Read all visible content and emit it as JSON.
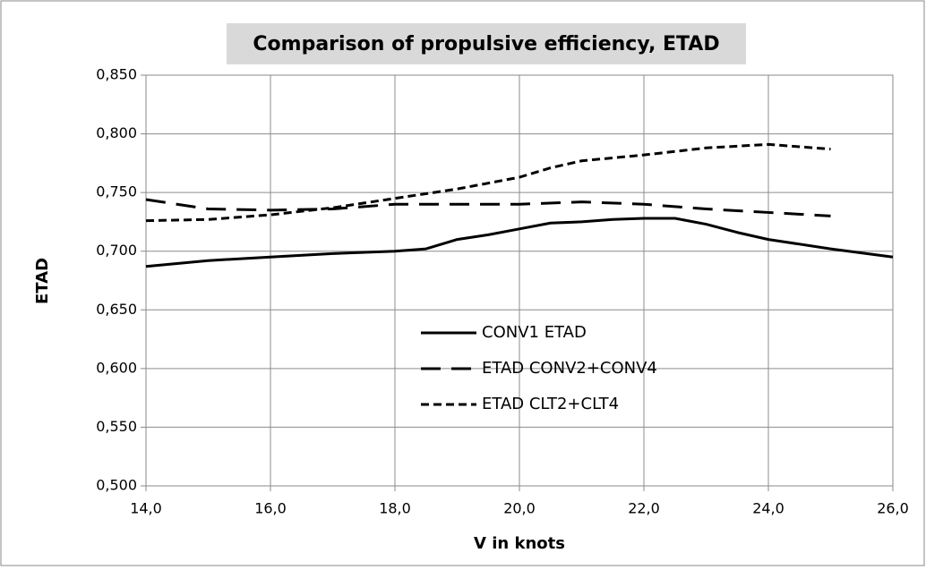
{
  "chart_data": {
    "type": "line",
    "title": "Comparison of propulsive efficiency, ETAD",
    "xlabel": "V in knots",
    "ylabel": "ETAD",
    "xlim": [
      14,
      26
    ],
    "ylim": [
      0.5,
      0.85
    ],
    "xticks": [
      {
        "value": 14,
        "label": "14,0"
      },
      {
        "value": 16,
        "label": "16,0"
      },
      {
        "value": 18,
        "label": "18,0"
      },
      {
        "value": 20,
        "label": "20,0"
      },
      {
        "value": 22,
        "label": "22,0"
      },
      {
        "value": 24,
        "label": "24,0"
      },
      {
        "value": 26,
        "label": "26,0"
      }
    ],
    "yticks": [
      {
        "value": 0.5,
        "label": "0,500"
      },
      {
        "value": 0.55,
        "label": "0,550"
      },
      {
        "value": 0.6,
        "label": "0,600"
      },
      {
        "value": 0.65,
        "label": "0,650"
      },
      {
        "value": 0.7,
        "label": "0,700"
      },
      {
        "value": 0.75,
        "label": "0,750"
      },
      {
        "value": 0.8,
        "label": "0,800"
      },
      {
        "value": 0.85,
        "label": "0,850"
      }
    ],
    "grid": true,
    "series": [
      {
        "name": "CONV1 ETAD",
        "color": "#000000",
        "style": "solid",
        "x": [
          14,
          15,
          16,
          17,
          18,
          18.5,
          19,
          19.5,
          20,
          20.5,
          21,
          21.5,
          22,
          22.5,
          23,
          23.5,
          24,
          25,
          26
        ],
        "values": [
          0.687,
          0.692,
          0.695,
          0.698,
          0.7,
          0.702,
          0.71,
          0.714,
          0.719,
          0.724,
          0.725,
          0.727,
          0.728,
          0.728,
          0.723,
          0.716,
          0.71,
          0.702,
          0.695
        ]
      },
      {
        "name": "ETAD CONV2+CONV4",
        "color": "#000000",
        "style": "long-dash",
        "x": [
          14,
          15,
          16,
          17,
          18,
          19,
          20,
          21,
          22,
          23,
          24,
          25
        ],
        "values": [
          0.744,
          0.736,
          0.735,
          0.736,
          0.74,
          0.74,
          0.74,
          0.742,
          0.74,
          0.736,
          0.733,
          0.73
        ]
      },
      {
        "name": "ETAD CLT2+CLT4",
        "color": "#000000",
        "style": "short-dash",
        "x": [
          14,
          15,
          16,
          17,
          18,
          19,
          20,
          20.5,
          21,
          22,
          23,
          24,
          25
        ],
        "values": [
          0.726,
          0.727,
          0.731,
          0.737,
          0.745,
          0.753,
          0.763,
          0.771,
          0.777,
          0.782,
          0.788,
          0.791,
          0.787
        ]
      }
    ]
  }
}
